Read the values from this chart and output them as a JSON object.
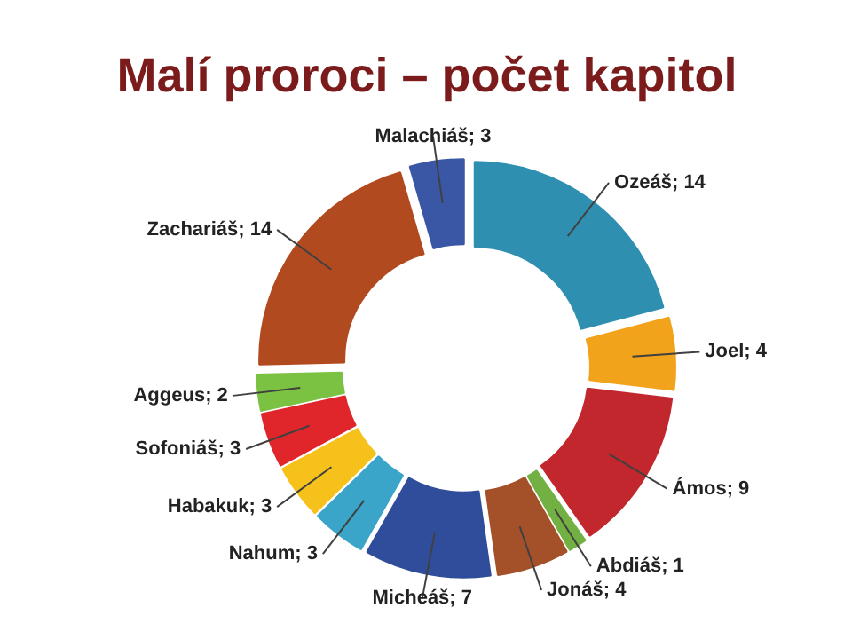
{
  "chart_data": {
    "type": "donut",
    "title": "Malí proroci – počet kapitol",
    "categories": [
      "Ozeáš; 14",
      "Joel; 4",
      "Ámos; 9",
      "Abdiáš; 1",
      "Jonáš; 4",
      "Micheáš; 7",
      "Nahum; 3",
      "Habakuk; 3",
      "Sofoniáš; 3",
      "Aggeus; 2",
      "Zachariáš; 14",
      "Malachiáš; 3"
    ],
    "values": [
      14,
      4,
      9,
      1,
      4,
      7,
      3,
      3,
      3,
      2,
      14,
      3
    ],
    "colors": [
      "#2f8fb0",
      "#f2a31c",
      "#c1272d",
      "#72b043",
      "#a4512a",
      "#2f4d9a",
      "#3aa5c8",
      "#f5c11a",
      "#e0262b",
      "#7cc242",
      "#b24a1f",
      "#3a57a6"
    ]
  }
}
